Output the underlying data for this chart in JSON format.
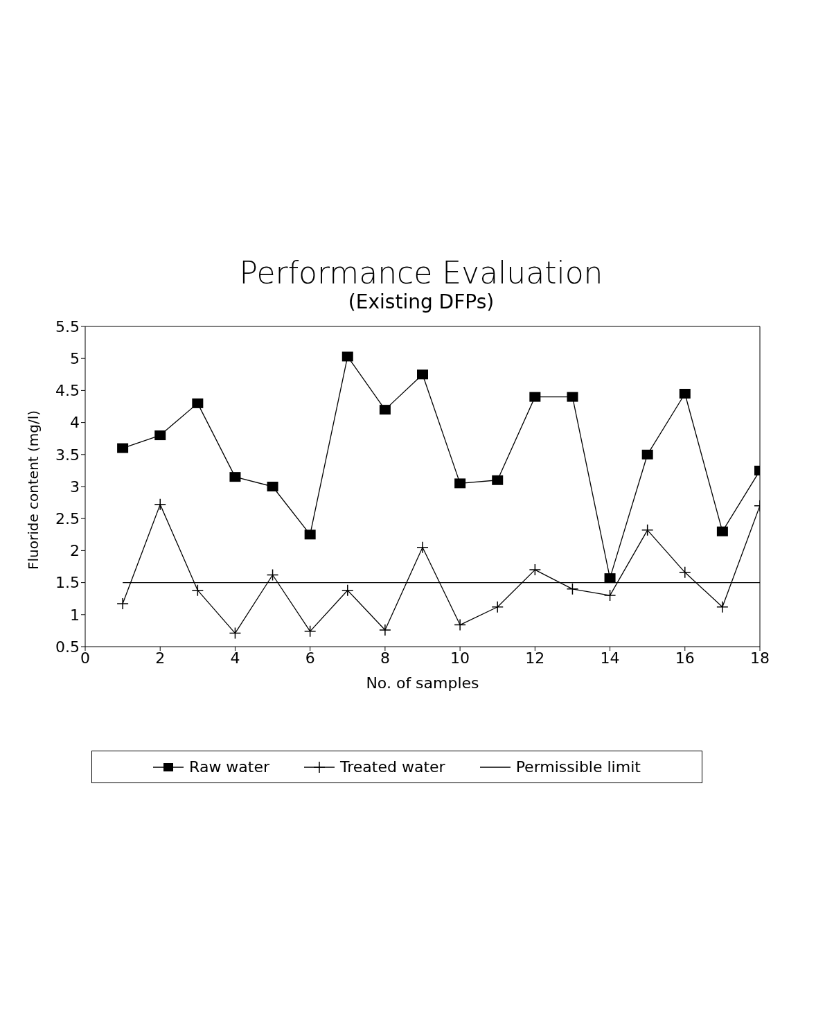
{
  "chart_data": {
    "type": "line",
    "title": "Performance Evaluation",
    "subtitle": "(Existing DFPs)",
    "xlabel": "No. of samples",
    "ylabel": "Fluoride content (mg/l)",
    "x": [
      1,
      2,
      3,
      4,
      5,
      6,
      7,
      8,
      9,
      10,
      11,
      12,
      13,
      14,
      15,
      16,
      17,
      18
    ],
    "series": [
      {
        "name": "Raw water",
        "color": "#000000",
        "marker": "square",
        "values": [
          3.6,
          3.8,
          4.3,
          3.15,
          3.0,
          2.25,
          5.03,
          4.2,
          4.75,
          3.05,
          3.1,
          4.4,
          4.4,
          1.57,
          3.5,
          4.45,
          2.3,
          3.25
        ]
      },
      {
        "name": "Treated water",
        "color": "#000000",
        "marker": "cross",
        "values": [
          1.17,
          2.72,
          1.38,
          0.71,
          1.62,
          0.74,
          1.38,
          0.76,
          2.05,
          0.84,
          1.12,
          1.7,
          1.4,
          1.3,
          2.32,
          1.66,
          1.12,
          2.7
        ]
      },
      {
        "name": "Permissible limit",
        "color": "#000000",
        "marker": "none",
        "values": [
          1.5,
          1.5,
          1.5,
          1.5,
          1.5,
          1.5,
          1.5,
          1.5,
          1.5,
          1.5,
          1.5,
          1.5,
          1.5,
          1.5,
          1.5,
          1.5,
          1.5,
          1.5
        ]
      }
    ],
    "xlim": [
      0,
      18
    ],
    "xticks": [
      0,
      2,
      4,
      6,
      8,
      10,
      12,
      14,
      16,
      18
    ],
    "ylim": [
      0.5,
      5.5
    ],
    "yticks": [
      0.5,
      1,
      1.5,
      2,
      2.5,
      3,
      3.5,
      4,
      4.5,
      5,
      5.5
    ],
    "grid": false,
    "legend": "bottom",
    "line_style": "solid"
  }
}
